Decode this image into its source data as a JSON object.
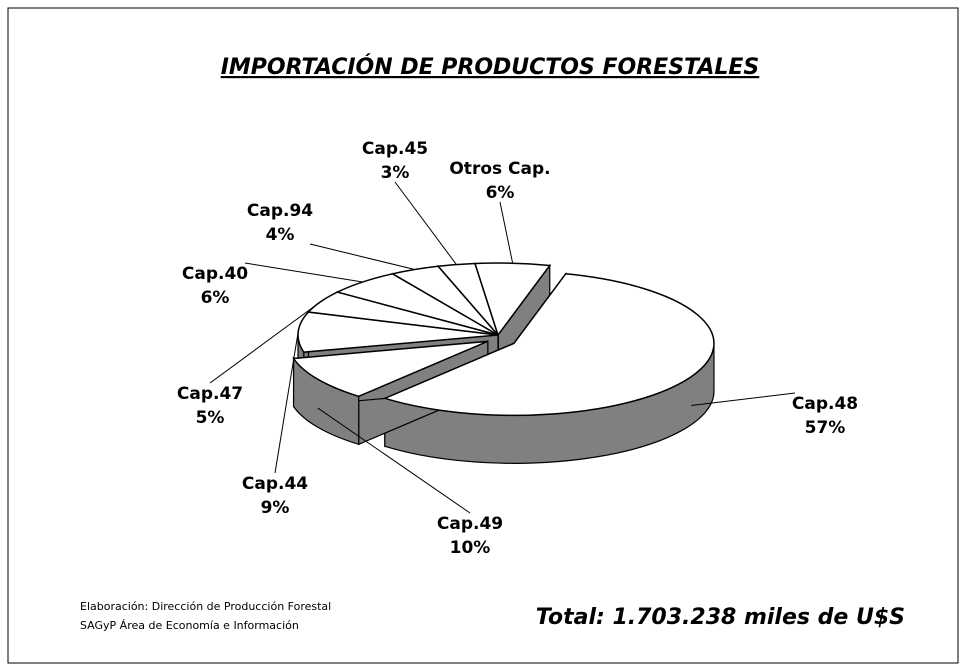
{
  "chart_data": {
    "type": "pie",
    "title": "IMPORTACIÓN DE PRODUCTOS FORESTALES",
    "categories": [
      "Cap.48",
      "Cap.49",
      "Cap.44",
      "Cap.47",
      "Cap.40",
      "Cap.94",
      "Cap.45",
      "Otros Cap."
    ],
    "values": [
      57,
      10,
      9,
      5,
      6,
      4,
      3,
      6
    ],
    "value_labels": [
      "57%",
      "10%",
      "9%",
      "5%",
      "6%",
      "4%",
      "3%",
      "6%"
    ],
    "color": "#ffffff",
    "side_color": "#808080",
    "notes": [
      "Elaboración: Dirección de Producción Forestal",
      "SAGyP Área de Economía e Información"
    ],
    "total": "Total: 1.703.238 miles de U$S"
  }
}
